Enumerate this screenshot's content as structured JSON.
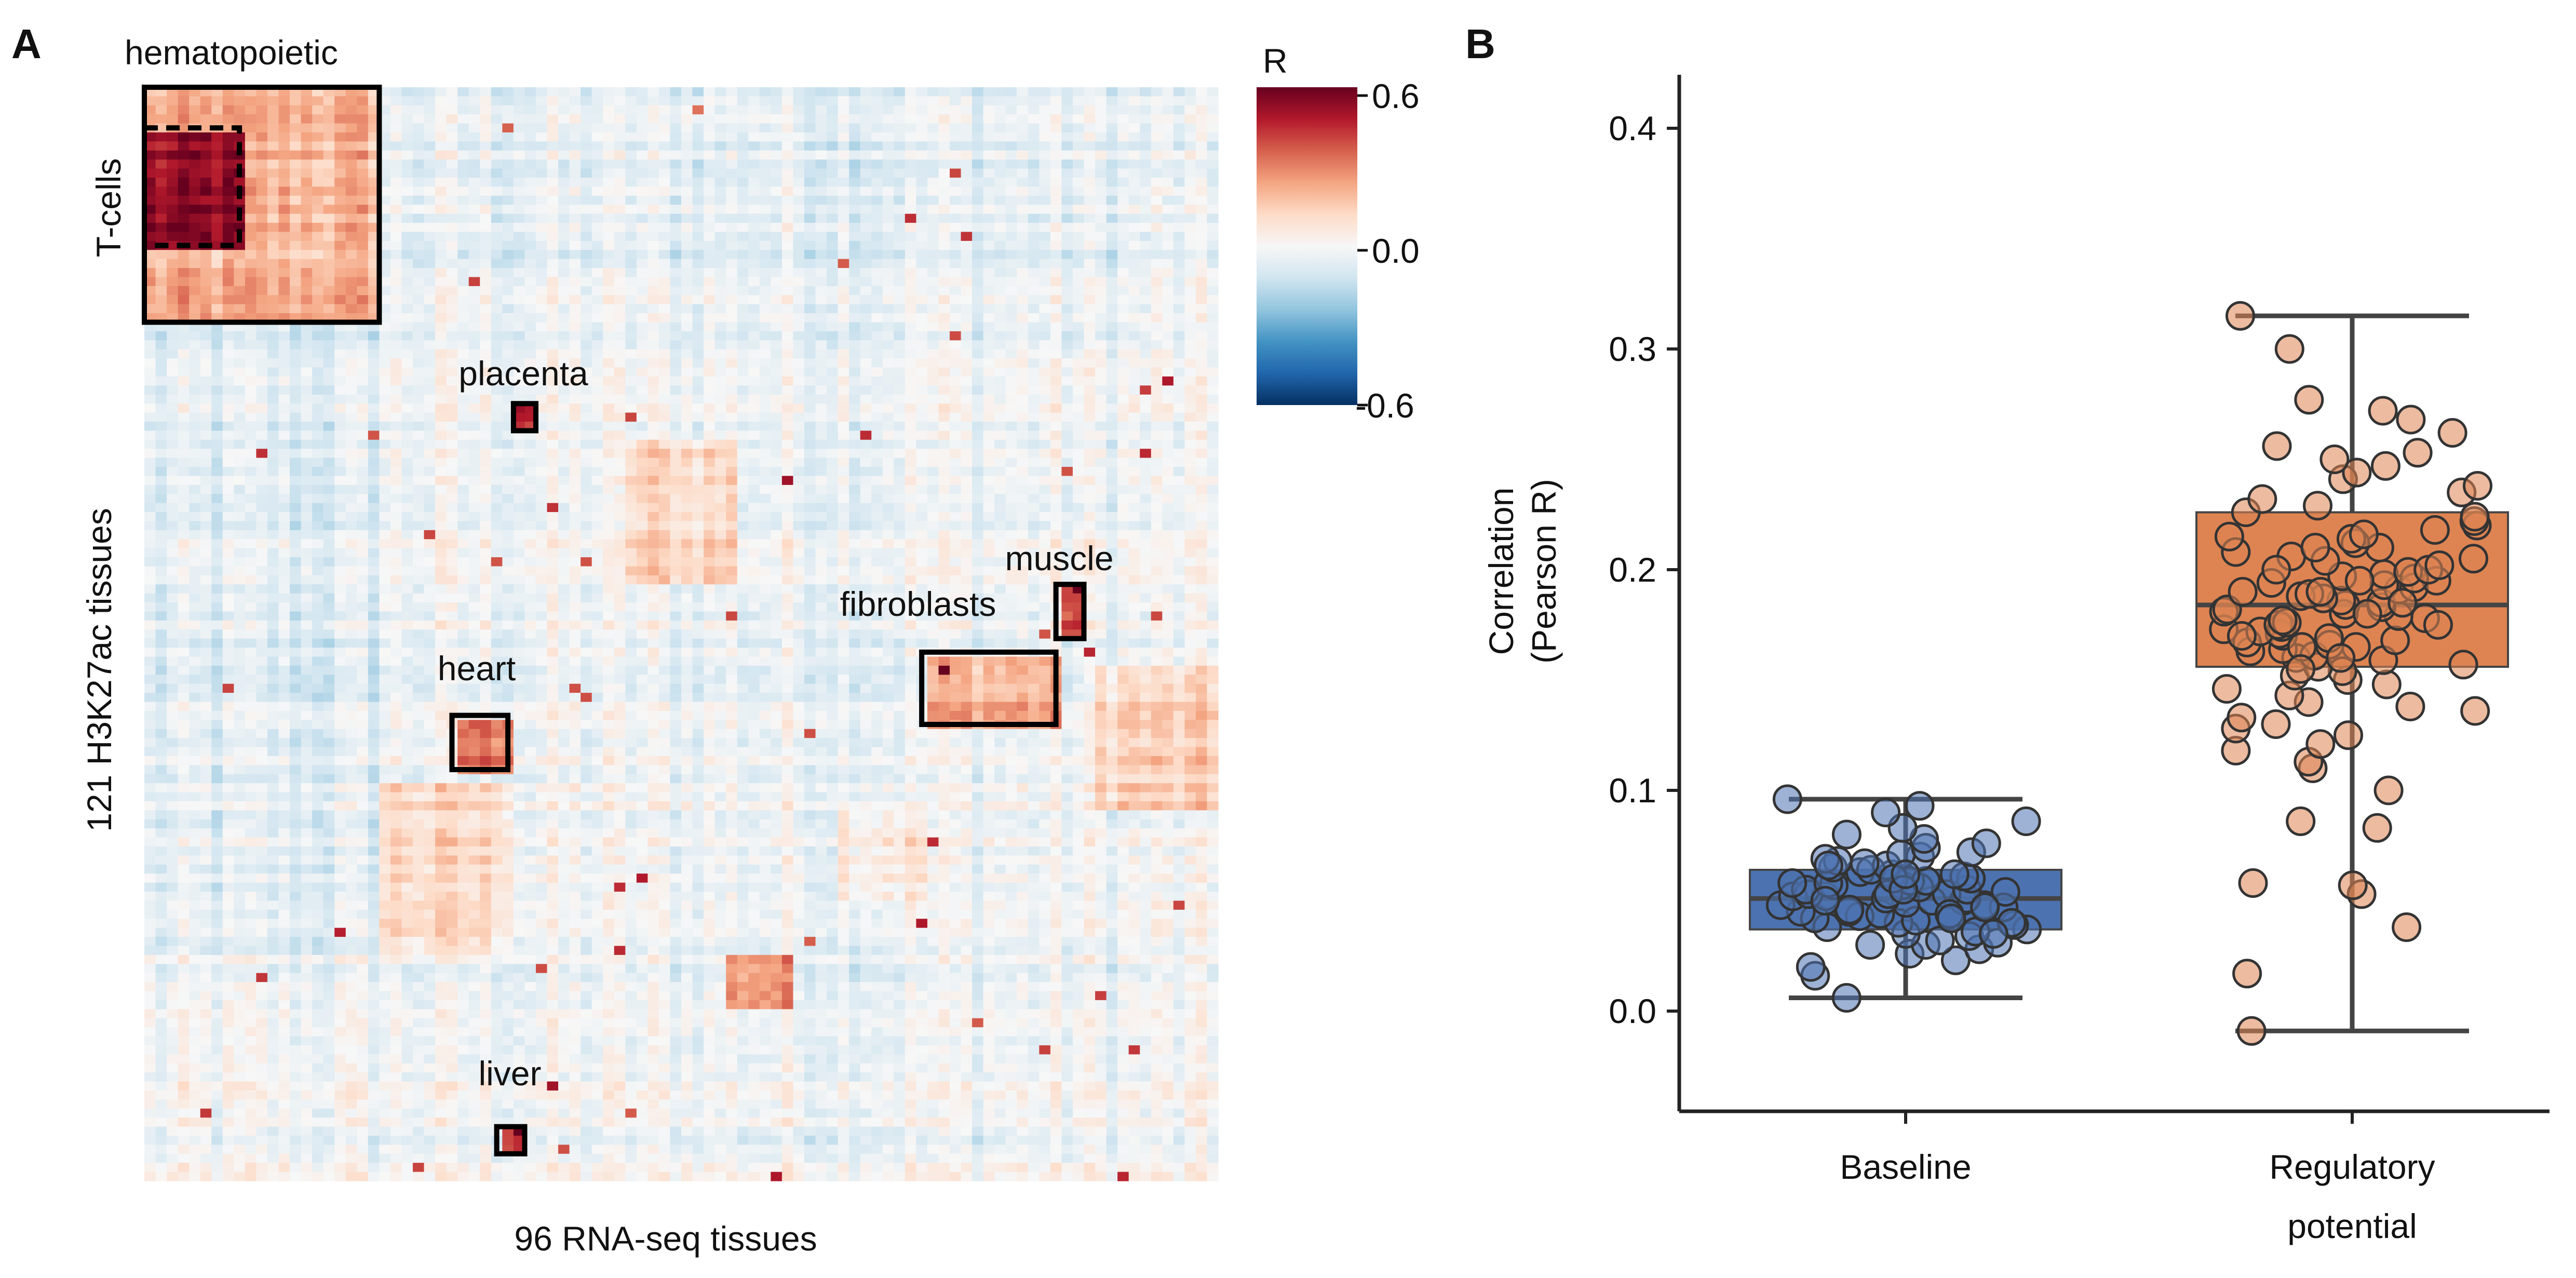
{
  "panels": {
    "a_label": "A",
    "b_label": "B"
  },
  "chart_data": [
    {
      "type": "heatmap",
      "xlabel": "96 RNA-seq tissues",
      "ylabel": "121 H3K27ac tissues",
      "n_cols": 96,
      "n_rows": 121,
      "colormap": [
        "#053061",
        "#2166ac",
        "#4393c3",
        "#92c5de",
        "#d1e5f0",
        "#f7f7f7",
        "#fddbc7",
        "#f4a582",
        "#d6604d",
        "#b2182b",
        "#67001f"
      ],
      "colorbar": {
        "title": "R",
        "min": -0.6,
        "max": 0.6,
        "tick_labels": [
          "0.6",
          "0.0",
          "-0.6"
        ]
      },
      "annotations": [
        {
          "label": "hematopoietic",
          "style": "solid",
          "col_range": [
            0,
            21
          ],
          "row_range": [
            0,
            26
          ]
        },
        {
          "label": "T-cells",
          "style": "dashed",
          "col_range": [
            0,
            8.5
          ],
          "row_range": [
            4.5,
            17.5
          ]
        },
        {
          "label": "placenta",
          "style": "solid",
          "col_range": [
            33,
            35
          ],
          "row_range": [
            35,
            38
          ]
        },
        {
          "label": "muscle",
          "style": "solid",
          "col_range": [
            81.5,
            84
          ],
          "row_range": [
            55,
            61
          ]
        },
        {
          "label": "fibroblasts",
          "style": "solid",
          "col_range": [
            69.5,
            81.5
          ],
          "row_range": [
            62.5,
            70.5
          ]
        },
        {
          "label": "heart",
          "style": "solid",
          "col_range": [
            27.5,
            32.5
          ],
          "row_range": [
            69.5,
            75.5
          ]
        },
        {
          "label": "liver",
          "style": "solid",
          "col_range": [
            31.5,
            34
          ],
          "row_range": [
            115,
            118
          ]
        }
      ]
    },
    {
      "type": "box",
      "ylabel_lines": [
        "Correlation",
        "(Pearson R)"
      ],
      "ylim": [
        -0.045,
        0.425
      ],
      "yticks": [
        0.0,
        0.1,
        0.2,
        0.3,
        0.4
      ],
      "ytick_labels": [
        "0.0",
        "0.1",
        "0.2",
        "0.3",
        "0.4"
      ],
      "categories": [
        {
          "label_lines": [
            "Baseline"
          ],
          "color": "#4c72b0"
        },
        {
          "label_lines": [
            "Regulatory",
            "potential"
          ],
          "color": "#dd8452"
        }
      ],
      "series": [
        {
          "box": {
            "q1": 0.037,
            "median": 0.051,
            "q3": 0.064,
            "whisker_low": 0.006,
            "whisker_high": 0.096
          },
          "color": "#4c72b0",
          "points": [
            0.006,
            0.016,
            0.02,
            0.023,
            0.026,
            0.028,
            0.03,
            0.031,
            0.032,
            0.034,
            0.035,
            0.036,
            0.037,
            0.038,
            0.039,
            0.04,
            0.041,
            0.042,
            0.043,
            0.044,
            0.045,
            0.045,
            0.046,
            0.047,
            0.048,
            0.048,
            0.049,
            0.05,
            0.05,
            0.051,
            0.051,
            0.052,
            0.052,
            0.053,
            0.053,
            0.054,
            0.055,
            0.055,
            0.056,
            0.057,
            0.057,
            0.058,
            0.059,
            0.059,
            0.06,
            0.061,
            0.062,
            0.062,
            0.063,
            0.064,
            0.065,
            0.066,
            0.067,
            0.068,
            0.069,
            0.07,
            0.071,
            0.072,
            0.074,
            0.076,
            0.078,
            0.08,
            0.083,
            0.086,
            0.09,
            0.093,
            0.096,
            0.04,
            0.047,
            0.053,
            0.058,
            0.044,
            0.06,
            0.035,
            0.066,
            0.05,
            0.055,
            0.062,
            0.03,
            0.042
          ]
        },
        {
          "box": {
            "q1": 0.156,
            "median": 0.184,
            "q3": 0.226,
            "whisker_low": -0.009,
            "whisker_high": 0.315
          },
          "color": "#dd8452",
          "points": [
            -0.009,
            0.017,
            0.038,
            0.053,
            0.057,
            0.058,
            0.083,
            0.086,
            0.1,
            0.11,
            0.113,
            0.118,
            0.121,
            0.125,
            0.128,
            0.13,
            0.133,
            0.136,
            0.138,
            0.14,
            0.143,
            0.146,
            0.148,
            0.15,
            0.152,
            0.154,
            0.156,
            0.157,
            0.159,
            0.16,
            0.161,
            0.163,
            0.164,
            0.165,
            0.166,
            0.167,
            0.168,
            0.169,
            0.17,
            0.171,
            0.172,
            0.173,
            0.174,
            0.175,
            0.176,
            0.177,
            0.178,
            0.179,
            0.18,
            0.181,
            0.182,
            0.183,
            0.184,
            0.185,
            0.186,
            0.187,
            0.188,
            0.189,
            0.19,
            0.191,
            0.192,
            0.193,
            0.194,
            0.195,
            0.196,
            0.197,
            0.198,
            0.199,
            0.2,
            0.202,
            0.204,
            0.206,
            0.208,
            0.21,
            0.212,
            0.214,
            0.216,
            0.218,
            0.22,
            0.222,
            0.224,
            0.226,
            0.229,
            0.232,
            0.235,
            0.238,
            0.241,
            0.244,
            0.247,
            0.25,
            0.253,
            0.256,
            0.262,
            0.268,
            0.272,
            0.277,
            0.3,
            0.315,
            0.165,
            0.175,
            0.185,
            0.195,
            0.205,
            0.215,
            0.17,
            0.18,
            0.19,
            0.2,
            0.21,
            0.16,
            0.155
          ]
        }
      ]
    }
  ]
}
